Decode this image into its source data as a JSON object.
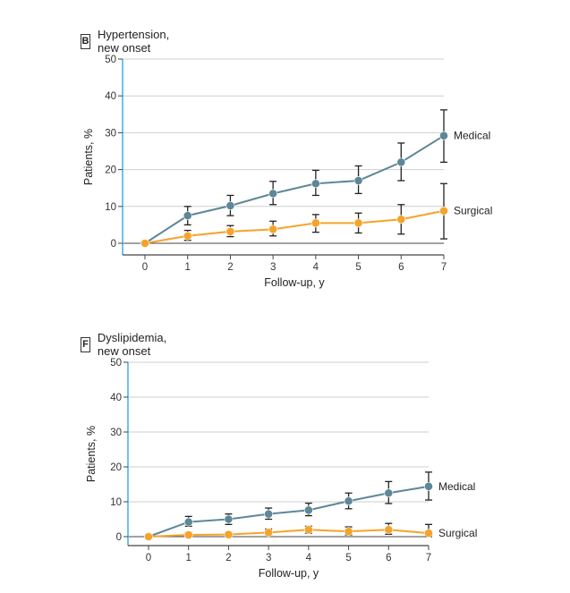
{
  "chart_data": [
    {
      "type": "line",
      "panel_letter": "B",
      "title": "Hypertension, new onset",
      "xlabel": "Follow-up, y",
      "ylabel": "Patients, %",
      "x": [
        0,
        1,
        2,
        3,
        4,
        5,
        6,
        7
      ],
      "ylim": [
        0,
        50
      ],
      "yticks": [
        0,
        10,
        20,
        30,
        40,
        50
      ],
      "grid": true,
      "series": [
        {
          "name": "Medical",
          "color": "#5e8798",
          "values": [
            0,
            7.5,
            10.2,
            13.5,
            16.2,
            17,
            22,
            29.2
          ],
          "err_low": [
            0,
            5,
            7.5,
            10.5,
            13,
            13.5,
            17,
            22
          ],
          "err_high": [
            0,
            10,
            13,
            16.8,
            19.8,
            21,
            27.2,
            36.2
          ]
        },
        {
          "name": "Surgical",
          "color": "#f5a32a",
          "values": [
            0,
            2,
            3.2,
            3.8,
            5.5,
            5.5,
            6.5,
            8.8
          ],
          "err_low": [
            0,
            0.8,
            1.8,
            2,
            3,
            2.8,
            2.5,
            1.2
          ],
          "err_high": [
            0,
            3.5,
            4.8,
            6,
            7.8,
            8.2,
            10.5,
            16.2
          ]
        }
      ]
    },
    {
      "type": "line",
      "panel_letter": "F",
      "title": "Dyslipidemia, new onset",
      "xlabel": "Follow-up, y",
      "ylabel": "Patients, %",
      "x": [
        0,
        1,
        2,
        3,
        4,
        5,
        6,
        7
      ],
      "ylim": [
        0,
        50
      ],
      "yticks": [
        0,
        10,
        20,
        30,
        40,
        50
      ],
      "grid": true,
      "series": [
        {
          "name": "Medical",
          "color": "#5e8798",
          "values": [
            0,
            4.2,
            5,
            6.5,
            7.6,
            10.2,
            12.5,
            14.4
          ],
          "err_low": [
            0,
            3,
            3.5,
            5,
            6,
            8,
            9.5,
            10.5
          ],
          "err_high": [
            0,
            5.8,
            6.5,
            8.2,
            9.6,
            12.5,
            15.8,
            18.5
          ]
        },
        {
          "name": "Surgical",
          "color": "#f5a32a",
          "values": [
            0,
            0.5,
            0.6,
            1.2,
            2,
            1.5,
            2,
            1
          ],
          "err_low": [
            0,
            0,
            0,
            0.5,
            1,
            0.5,
            0.7,
            0
          ],
          "err_high": [
            0,
            1.2,
            1.2,
            2.2,
            3,
            2.8,
            3.8,
            3.5
          ]
        }
      ]
    }
  ]
}
